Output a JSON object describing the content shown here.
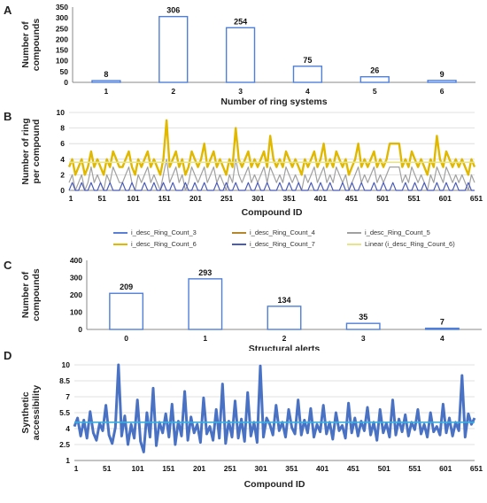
{
  "panels": {
    "A": {
      "letter": "A"
    },
    "B": {
      "letter": "B"
    },
    "C": {
      "letter": "C"
    },
    "D": {
      "letter": "D"
    }
  },
  "legend": [
    {
      "label": "i_desc_Ring_Count_3",
      "color": "#5b7fd6"
    },
    {
      "label": "i_desc_Ring_Count_4",
      "color": "#b6862c"
    },
    {
      "label": "i_desc_Ring_Count_5",
      "color": "#a0a0a0"
    },
    {
      "label": "i_desc_Ring_Count_6",
      "color": "#e0b800"
    },
    {
      "label": "i_desc_Ring_Count_7",
      "color": "#4a5bb8"
    },
    {
      "label": "Linear (i_desc_Ring_Count_6)",
      "color": "#e8e48a"
    }
  ],
  "chart_data": [
    {
      "type": "bar",
      "categories": [
        "1",
        "2",
        "3",
        "4",
        "5",
        "6"
      ],
      "values": [
        8,
        306,
        254,
        75,
        26,
        9
      ],
      "ylabel": "Number of compounds",
      "xlabel": "Number of ring systems",
      "ylim": [
        0,
        350
      ],
      "yticks": [
        "0",
        "50",
        "100",
        "150",
        "200",
        "250",
        "300",
        "350"
      ],
      "color": "#4f7fd8"
    },
    {
      "type": "line",
      "ylabel": "Number of ring per compound",
      "xlabel": "Compound ID",
      "ylim": [
        0,
        10
      ],
      "yticks": [
        "0",
        "2",
        "4",
        "6",
        "8",
        "10"
      ],
      "xticks": [
        "1",
        "51",
        "101",
        "151",
        "201",
        "251",
        "301",
        "351",
        "401",
        "451",
        "501",
        "551",
        "601",
        "651"
      ],
      "series": [
        {
          "name": "i_desc_Ring_Count_6",
          "color": "#e0b800",
          "values": [
            3,
            4,
            2,
            3,
            4,
            2,
            3,
            5,
            3,
            4,
            3,
            2,
            4,
            3,
            5,
            4,
            3,
            3,
            4,
            5,
            3,
            2,
            4,
            3,
            4,
            5,
            3,
            4,
            3,
            2,
            4,
            9,
            3,
            4,
            5,
            3,
            4,
            2,
            3,
            5,
            4,
            3,
            4,
            6,
            3,
            4,
            5,
            3,
            4,
            3,
            2,
            4,
            3,
            8,
            4,
            3,
            4,
            5,
            3,
            4,
            3,
            4,
            5,
            3,
            7,
            4,
            3,
            4,
            3,
            5,
            4,
            3,
            4,
            3,
            2,
            4,
            3,
            4,
            5,
            3,
            4,
            6,
            3,
            4,
            3,
            5,
            4,
            3,
            4,
            2,
            3,
            4,
            6,
            3,
            4,
            3,
            4,
            5,
            3,
            4,
            3,
            4,
            6,
            6,
            6,
            6,
            3,
            4,
            3,
            5,
            4,
            3,
            4,
            3,
            2,
            4,
            3,
            7,
            4,
            3,
            5,
            4,
            3,
            4,
            3,
            4,
            3,
            2,
            4,
            3
          ]
        },
        {
          "name": "i_desc_Ring_Count_5",
          "color": "#a0a0a0",
          "values": [
            1,
            2,
            0,
            1,
            2,
            0,
            1,
            3,
            1,
            2,
            1,
            0,
            2,
            1,
            3,
            2,
            1,
            1,
            2,
            3,
            1,
            0,
            2,
            1,
            2,
            3,
            1,
            2,
            1,
            0,
            2,
            4,
            1,
            2,
            3,
            1,
            2,
            0,
            1,
            3,
            2,
            1,
            2,
            3,
            1,
            2,
            3,
            1,
            2,
            1,
            0,
            2,
            1,
            4,
            2,
            1,
            2,
            3,
            1,
            2,
            1,
            2,
            3,
            1,
            3,
            2,
            1,
            2,
            1,
            3,
            2,
            1,
            2,
            1,
            0,
            2,
            1,
            2,
            3,
            1,
            2,
            3,
            1,
            2,
            1,
            3,
            2,
            1,
            2,
            0,
            1,
            2,
            3,
            1,
            2,
            1,
            2,
            3,
            1,
            2,
            1,
            2,
            3,
            3,
            3,
            3,
            1,
            2,
            1,
            3,
            2,
            1,
            2,
            1,
            0,
            2,
            1,
            3,
            2,
            1,
            3,
            2,
            1,
            2,
            1,
            2,
            1,
            0,
            2,
            1
          ]
        },
        {
          "name": "i_desc_Ring_Count_7",
          "color": "#4a5bb8",
          "values": [
            0,
            1,
            0,
            0,
            1,
            0,
            0,
            1,
            0,
            0,
            1,
            0,
            0,
            1,
            0,
            0,
            0,
            1,
            0,
            0,
            1,
            0,
            0,
            0,
            1,
            0,
            0,
            1,
            0,
            0,
            1,
            0,
            0,
            1,
            0,
            0,
            0,
            1,
            0,
            0,
            1,
            0,
            0,
            1,
            0,
            0,
            0,
            1,
            0,
            0,
            1,
            0,
            0,
            1,
            0,
            0,
            0,
            1,
            0,
            0,
            1,
            0,
            0,
            1,
            0,
            0,
            0,
            1,
            0,
            0,
            1,
            0,
            0,
            1,
            0,
            0,
            0,
            1,
            0,
            0,
            1,
            0,
            0,
            1,
            0,
            0,
            0,
            1,
            0,
            0,
            1,
            0,
            0,
            1,
            0,
            0,
            0,
            1,
            0,
            0,
            1,
            0,
            0,
            1,
            0,
            0,
            0,
            1,
            0,
            0,
            1,
            0,
            0,
            1,
            0,
            0,
            0,
            1,
            0,
            0,
            1,
            0,
            0,
            1,
            0,
            0,
            0,
            1,
            0,
            0
          ]
        },
        {
          "name": "Linear (i_desc_Ring_Count_6)",
          "color": "#e8e48a",
          "values": [
            3.6,
            3.6
          ]
        }
      ]
    },
    {
      "type": "bar",
      "categories": [
        "0",
        "1",
        "2",
        "3",
        "4"
      ],
      "values": [
        209,
        293,
        134,
        35,
        7
      ],
      "ylabel": "Number of compounds",
      "xlabel": "Structural alerts",
      "ylim": [
        0,
        400
      ],
      "yticks": [
        "0",
        "100",
        "200",
        "300",
        "400"
      ],
      "color": "#4f7fd8"
    },
    {
      "type": "line",
      "ylabel": "Synthetic accessibility",
      "xlabel": "Compound ID",
      "ylim": [
        1,
        10
      ],
      "yticks": [
        "1",
        "2.5",
        "4",
        "5.5",
        "7",
        "8.5",
        "10"
      ],
      "xticks": [
        "1",
        "51",
        "101",
        "151",
        "201",
        "251",
        "301",
        "351",
        "401",
        "451",
        "501",
        "551",
        "601",
        "651"
      ],
      "series": [
        {
          "name": "",
          "color": "#4a72c4",
          "values": [
            4.2,
            5,
            3.3,
            4.8,
            3.1,
            5.6,
            3.6,
            2.9,
            4.5,
            3.8,
            6.2,
            3.4,
            2.6,
            4.1,
            10,
            3.3,
            5.2,
            2.5,
            4.4,
            3.1,
            6.7,
            2.8,
            1.8,
            5.5,
            3.2,
            7.8,
            2.4,
            4.6,
            3.6,
            5.4,
            3.2,
            6.3,
            2.5,
            4.7,
            3.3,
            7.5,
            2.9,
            5.1,
            3.6,
            4.4,
            2.7,
            6.9,
            3.5,
            4.2,
            2.9,
            5.8,
            3.1,
            8.2,
            2.6,
            4.7,
            3.2,
            6.6,
            3.1,
            4.9,
            2.8,
            7.4,
            3.3,
            4.6,
            2.7,
            9.9,
            3.2,
            5,
            4.4,
            3.4,
            6.2,
            3.8,
            4.6,
            3.2,
            5.8,
            4.1,
            3.5,
            6.7,
            3.4,
            4.8,
            3.6,
            5.9,
            3.2,
            4.4,
            3.7,
            6.2,
            3.5,
            4.6,
            3,
            5.5,
            3.8,
            4.3,
            3.1,
            6.4,
            3.6,
            5,
            3.3,
            4.7,
            3.8,
            6,
            3.4,
            4.6,
            2.9,
            5.8,
            3.6,
            4.5,
            3.2,
            6.7,
            3.4,
            4.9,
            3.7,
            5.3,
            3.3,
            4.6,
            3.9,
            5.8,
            3.5,
            4.4,
            3.2,
            5.5,
            3.7,
            4.2,
            3.4,
            6.3,
            3.6,
            5,
            3.3,
            4.6,
            3.8,
            9,
            3.2,
            5.4,
            4.4,
            5
          ]
        },
        {
          "name": "",
          "color": "#3ab0e0",
          "values": [
            4.6,
            4.6
          ]
        }
      ]
    }
  ]
}
